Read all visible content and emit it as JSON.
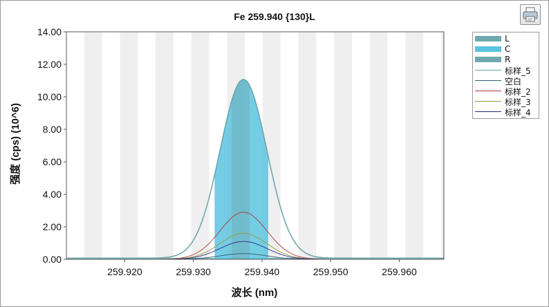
{
  "chart_data": {
    "type": "line",
    "title": "Fe 259.940 {130}L",
    "xlabel": "波长 (nm)",
    "ylabel": "强度 (cps) (10^6)",
    "xlim": [
      259.9115,
      259.9665
    ],
    "ylim": [
      0,
      14
    ],
    "x_ticks": [
      "259.920",
      "259.930",
      "259.940",
      "259.950",
      "259.960"
    ],
    "x_tick_values": [
      259.92,
      259.93,
      259.94,
      259.95,
      259.96
    ],
    "y_ticks": [
      "0.00",
      "2.00",
      "4.00",
      "6.00",
      "8.00",
      "10.00",
      "12.00",
      "14.00"
    ],
    "y_tick_values": [
      0,
      2,
      4,
      6,
      8,
      10,
      12,
      14
    ],
    "grid": "alternating vertical bands",
    "legend_position": "right",
    "regions": [
      {
        "name": "L",
        "x_start": 259.9115,
        "x_end": 259.9665,
        "color": "#6ea9b0"
      },
      {
        "name": "C",
        "x_start": 259.9331,
        "x_end": 259.9409,
        "color": "#5cc3e0"
      },
      {
        "name": "R",
        "x_start": 259.9356,
        "x_end": 259.9382,
        "color": "#6ea9b0"
      }
    ],
    "peak_center": 259.9373,
    "series": [
      {
        "name": "标样_5",
        "color": "#6aa3a8",
        "peak": 11.0,
        "width": 0.0034,
        "baseline": 0.07
      },
      {
        "name": "空白",
        "color": "#2e5f73",
        "peak": 0.35,
        "width": 0.0034,
        "baseline": 0.0
      },
      {
        "name": "标样_2",
        "color": "#b03a3a",
        "peak": 2.9,
        "width": 0.0034,
        "baseline": 0.0
      },
      {
        "name": "标样_3",
        "color": "#9a9a30",
        "peak": 1.6,
        "width": 0.0034,
        "baseline": 0.0
      },
      {
        "name": "标样_4",
        "color": "#2a2a80",
        "peak": 1.1,
        "width": 0.0034,
        "baseline": 0.0
      }
    ]
  },
  "legend": {
    "items": [
      {
        "label": "L",
        "color": "#6ea9b0",
        "kind": "band"
      },
      {
        "label": "C",
        "color": "#5cc3e0",
        "kind": "band"
      },
      {
        "label": "R",
        "color": "#6ea9b0",
        "kind": "band"
      },
      {
        "label": "标样_5",
        "color": "#6aa3a8",
        "kind": "line"
      },
      {
        "label": "空白",
        "color": "#2e5f73",
        "kind": "line"
      },
      {
        "label": "标样_2",
        "color": "#b03a3a",
        "kind": "line"
      },
      {
        "label": "标样_3",
        "color": "#9a9a30",
        "kind": "line"
      },
      {
        "label": "标样_4",
        "color": "#2a2a80",
        "kind": "line"
      }
    ]
  },
  "toolbar": {
    "print_icon": "printer-icon"
  }
}
